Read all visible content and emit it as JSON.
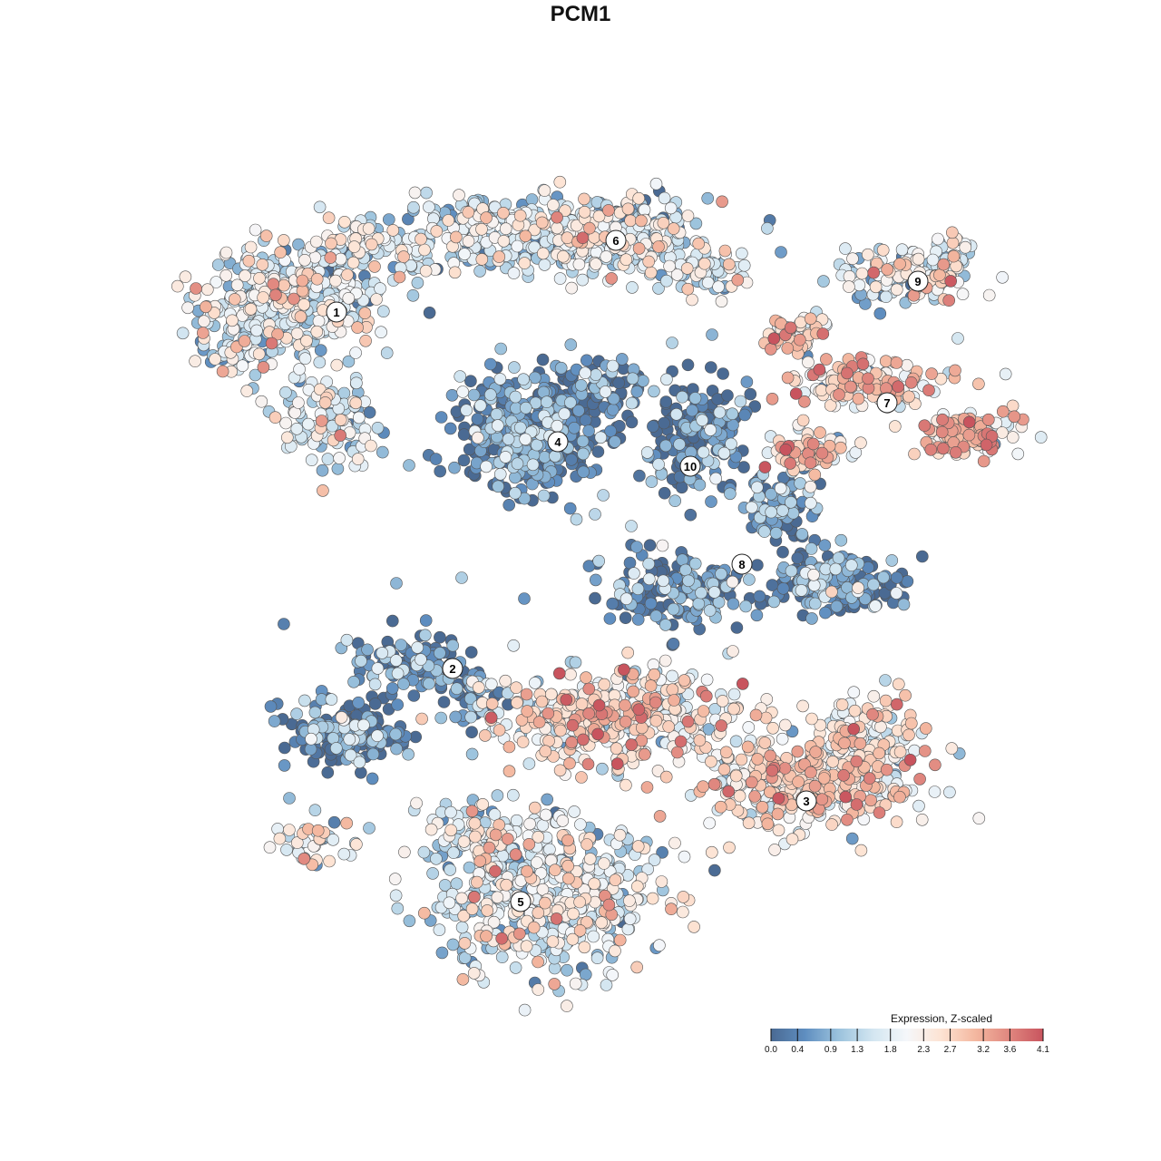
{
  "title": "PCM1",
  "legend": {
    "title": "Expression, Z-scaled",
    "ticks": [
      "0.0",
      "0.4",
      "0.9",
      "1.3",
      "1.8",
      "2.3",
      "2.7",
      "3.2",
      "3.6",
      "4.1"
    ],
    "min": 0.0,
    "max": 4.1,
    "colors": [
      "#4a6a93",
      "#5f8ec0",
      "#9cc3dd",
      "#d3e6f1",
      "#f5f7fa",
      "#fde3d3",
      "#f4b8a0",
      "#e0877f",
      "#c8545e"
    ],
    "placement": "bottom-right"
  },
  "chart_data": {
    "type": "scatter",
    "title": "PCM1",
    "xlabel": "",
    "ylabel": "",
    "color_scale": "Expression, Z-scaled",
    "grid": false,
    "axes_visible": false,
    "clusters": [
      {
        "label": "1",
        "mean_expression": 1.6
      },
      {
        "label": "2",
        "mean_expression": 0.4
      },
      {
        "label": "3",
        "mean_expression": 2.3
      },
      {
        "label": "4",
        "mean_expression": 0.3
      },
      {
        "label": "5",
        "mean_expression": 1.8
      },
      {
        "label": "6",
        "mean_expression": 1.5
      },
      {
        "label": "7",
        "mean_expression": 2.5
      },
      {
        "label": "8",
        "mean_expression": 0.3
      },
      {
        "label": "9",
        "mean_expression": 1.7
      },
      {
        "label": "10",
        "mean_expression": 0.2
      }
    ]
  }
}
